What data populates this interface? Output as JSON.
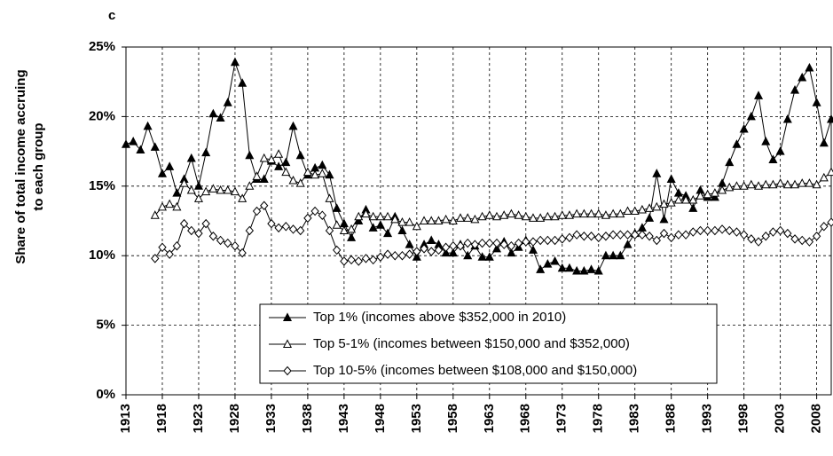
{
  "chart_data": {
    "type": "line",
    "panel_label": "c",
    "ylabel": [
      "Share of total income accruing",
      "to each group"
    ],
    "x": [
      1913,
      1914,
      1915,
      1916,
      1917,
      1918,
      1919,
      1920,
      1921,
      1922,
      1923,
      1924,
      1925,
      1926,
      1927,
      1928,
      1929,
      1930,
      1931,
      1932,
      1933,
      1934,
      1935,
      1936,
      1937,
      1938,
      1939,
      1940,
      1941,
      1942,
      1943,
      1944,
      1945,
      1946,
      1947,
      1948,
      1949,
      1950,
      1951,
      1952,
      1953,
      1954,
      1955,
      1956,
      1957,
      1958,
      1959,
      1960,
      1961,
      1962,
      1963,
      1964,
      1965,
      1966,
      1967,
      1968,
      1969,
      1970,
      1971,
      1972,
      1973,
      1974,
      1975,
      1976,
      1977,
      1978,
      1979,
      1980,
      1981,
      1982,
      1983,
      1984,
      1985,
      1986,
      1987,
      1988,
      1989,
      1990,
      1991,
      1992,
      1993,
      1994,
      1995,
      1996,
      1997,
      1998,
      1999,
      2000,
      2001,
      2002,
      2003,
      2004,
      2005,
      2006,
      2007,
      2008,
      2009,
      2010
    ],
    "series": [
      {
        "name": "Top 1% (incomes above $352,000 in 2010)",
        "color": "#000000",
        "marker": "triangle",
        "filled": true,
        "values": [
          18.0,
          18.2,
          17.6,
          19.3,
          17.8,
          15.9,
          16.4,
          14.5,
          15.5,
          17.0,
          15.0,
          17.4,
          20.2,
          19.9,
          21.0,
          23.9,
          22.4,
          17.2,
          15.5,
          15.5,
          16.8,
          16.4,
          16.7,
          19.3,
          17.2,
          15.8,
          16.3,
          16.5,
          15.8,
          13.4,
          12.3,
          11.3,
          12.5,
          13.3,
          12.0,
          12.2,
          11.6,
          12.8,
          11.8,
          10.8,
          9.9,
          10.8,
          11.1,
          10.8,
          10.2,
          10.2,
          10.8,
          10.0,
          10.7,
          9.9,
          9.9,
          10.5,
          11.0,
          10.2,
          10.6,
          11.1,
          10.4,
          9.0,
          9.4,
          9.6,
          9.1,
          9.1,
          8.9,
          8.9,
          9.0,
          8.9,
          10.0,
          10.0,
          10.0,
          10.8,
          11.6,
          12.0,
          12.7,
          15.9,
          12.6,
          15.5,
          14.5,
          14.3,
          13.4,
          14.7,
          14.2,
          14.2,
          15.2,
          16.7,
          18.0,
          19.1,
          20.0,
          21.5,
          18.2,
          16.9,
          17.5,
          19.8,
          21.9,
          22.8,
          23.5,
          21.0,
          18.1,
          19.8
        ]
      },
      {
        "name": "Top 5-1% (incomes between $150,000 and $352,000)",
        "color": "#000000",
        "marker": "triangle",
        "filled": false,
        "values": [
          null,
          null,
          null,
          null,
          12.9,
          13.5,
          13.7,
          13.5,
          15.2,
          14.7,
          14.1,
          14.6,
          14.8,
          14.7,
          14.7,
          14.6,
          14.1,
          15.0,
          15.7,
          17.0,
          16.9,
          17.3,
          16.0,
          15.4,
          15.2,
          16.0,
          15.8,
          15.9,
          14.1,
          12.2,
          11.8,
          11.9,
          12.8,
          13.0,
          12.8,
          12.8,
          12.8,
          12.6,
          12.4,
          12.4,
          12.1,
          12.5,
          12.5,
          12.5,
          12.6,
          12.5,
          12.7,
          12.7,
          12.6,
          12.8,
          12.9,
          12.8,
          12.9,
          13.0,
          12.9,
          12.8,
          12.7,
          12.7,
          12.8,
          12.8,
          12.9,
          12.9,
          13.0,
          13.0,
          13.0,
          13.0,
          12.9,
          13.0,
          13.0,
          13.2,
          13.2,
          13.3,
          13.4,
          13.5,
          13.7,
          13.8,
          14.0,
          14.0,
          14.0,
          14.3,
          14.4,
          14.5,
          14.7,
          14.9,
          15.0,
          15.0,
          15.1,
          15.0,
          15.1,
          15.1,
          15.2,
          15.1,
          15.1,
          15.2,
          15.2,
          15.1,
          15.6,
          16.0
        ]
      },
      {
        "name": "Top 10-5% (incomes between $108,000 and $150,000)",
        "color": "#000000",
        "marker": "diamond",
        "filled": false,
        "values": [
          null,
          null,
          null,
          null,
          9.8,
          10.6,
          10.1,
          10.7,
          12.3,
          11.8,
          11.6,
          12.3,
          11.4,
          11.1,
          10.9,
          10.7,
          10.2,
          11.8,
          13.2,
          13.6,
          12.3,
          12.0,
          12.1,
          11.9,
          11.8,
          12.7,
          13.2,
          12.9,
          11.8,
          10.4,
          9.6,
          9.7,
          9.6,
          9.8,
          9.7,
          9.9,
          10.1,
          10.0,
          10.0,
          10.1,
          10.3,
          10.5,
          10.3,
          10.4,
          10.6,
          10.7,
          10.7,
          10.9,
          10.8,
          10.9,
          10.9,
          10.9,
          10.8,
          10.7,
          10.9,
          11.0,
          11.0,
          11.1,
          11.1,
          11.1,
          11.2,
          11.3,
          11.5,
          11.4,
          11.4,
          11.3,
          11.4,
          11.5,
          11.5,
          11.5,
          11.5,
          11.5,
          11.4,
          11.1,
          11.6,
          11.3,
          11.5,
          11.5,
          11.7,
          11.8,
          11.8,
          11.8,
          11.9,
          11.8,
          11.7,
          11.5,
          11.2,
          11.0,
          11.4,
          11.7,
          11.8,
          11.6,
          11.2,
          11.1,
          11.0,
          11.4,
          12.1,
          12.4
        ]
      }
    ],
    "xlim": [
      1913,
      2010
    ],
    "xticks": [
      1913,
      1918,
      1923,
      1928,
      1933,
      1938,
      1943,
      1948,
      1953,
      1958,
      1963,
      1968,
      1973,
      1978,
      1983,
      1988,
      1993,
      1998,
      2003,
      2008
    ],
    "ylim": [
      0,
      25
    ],
    "yticks": [
      {
        "value": 0,
        "label": "0%"
      },
      {
        "value": 5,
        "label": "5%"
      },
      {
        "value": 10,
        "label": "10%"
      },
      {
        "value": 15,
        "label": "15%"
      },
      {
        "value": 20,
        "label": "20%"
      },
      {
        "value": 25,
        "label": "25%"
      }
    ],
    "grid": true,
    "legend": "lower center"
  }
}
